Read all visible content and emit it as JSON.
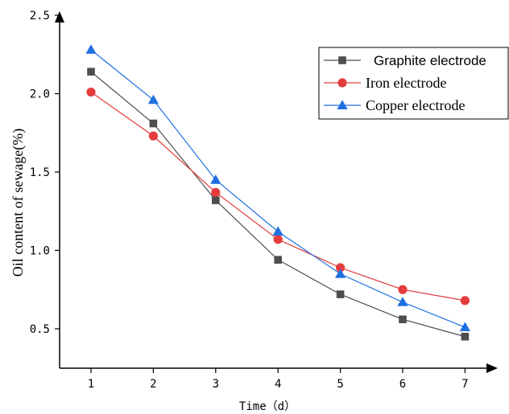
{
  "chart_data": {
    "type": "line",
    "title": "",
    "xlabel": "Time（d）",
    "ylabel": "Oil content of sewage(%)",
    "categories": [
      "1",
      "2",
      "3",
      "4",
      "5",
      "6",
      "7"
    ],
    "x": [
      1,
      2,
      3,
      4,
      5,
      6,
      7
    ],
    "xlim": [
      0.5,
      7.5
    ],
    "ylim": [
      0.25,
      2.5
    ],
    "yticks": [
      "0.5",
      "1.0",
      "1.5",
      "2.0",
      "2.5"
    ],
    "grid": false,
    "legend_position": "top-right",
    "series": [
      {
        "name": "Graphite electrode",
        "values": [
          2.14,
          1.81,
          1.32,
          0.94,
          0.72,
          0.56,
          0.45
        ],
        "color": "#4d4d4d",
        "marker": "square"
      },
      {
        "name": "Iron electrode",
        "values": [
          2.01,
          1.73,
          1.37,
          1.07,
          0.89,
          0.75,
          0.68
        ],
        "color": "#e53d3d",
        "marker": "circle"
      },
      {
        "name": "Copper electrode",
        "values": [
          2.28,
          1.96,
          1.45,
          1.12,
          0.85,
          0.67,
          0.51
        ],
        "color": "#1f6fe0",
        "marker": "triangle"
      }
    ]
  }
}
